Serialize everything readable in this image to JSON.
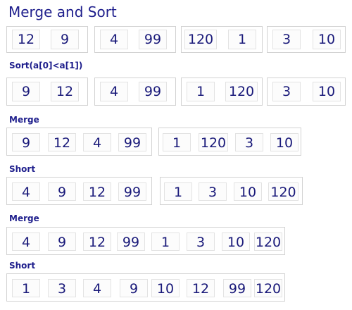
{
  "title": "Merge and Sort",
  "colors": {
    "text": "#1a1a7a",
    "border": "#d2d2d2",
    "cell_border": "#e3e3e3"
  },
  "labels": [
    "Sort(a[0]<a[1])",
    "Merge",
    "Short",
    "Merge",
    "Short"
  ],
  "rows": [
    {
      "label_index": null,
      "groups": [
        [
          "12",
          "9"
        ],
        [
          "4",
          "99"
        ],
        [
          "120",
          "1"
        ],
        [
          "3",
          "10"
        ]
      ]
    },
    {
      "label_index": 0,
      "groups": [
        [
          "9",
          "12"
        ],
        [
          "4",
          "99"
        ],
        [
          "1",
          "120"
        ],
        [
          "3",
          "10"
        ]
      ]
    },
    {
      "label_index": 1,
      "groups": [
        [
          "9",
          "12",
          "4",
          "99"
        ],
        [
          "1",
          "120",
          "3",
          "10"
        ]
      ]
    },
    {
      "label_index": 2,
      "groups": [
        [
          "4",
          "9",
          "12",
          "99"
        ],
        [
          "1",
          "3",
          "10",
          "120"
        ]
      ]
    },
    {
      "label_index": 3,
      "groups": [
        [
          "4",
          "9",
          "12",
          "99",
          "1",
          "3",
          "10",
          "120"
        ]
      ]
    },
    {
      "label_index": 4,
      "groups": [
        [
          "1",
          "3",
          "4",
          "9",
          "10",
          "12",
          "99",
          "120"
        ]
      ]
    }
  ]
}
